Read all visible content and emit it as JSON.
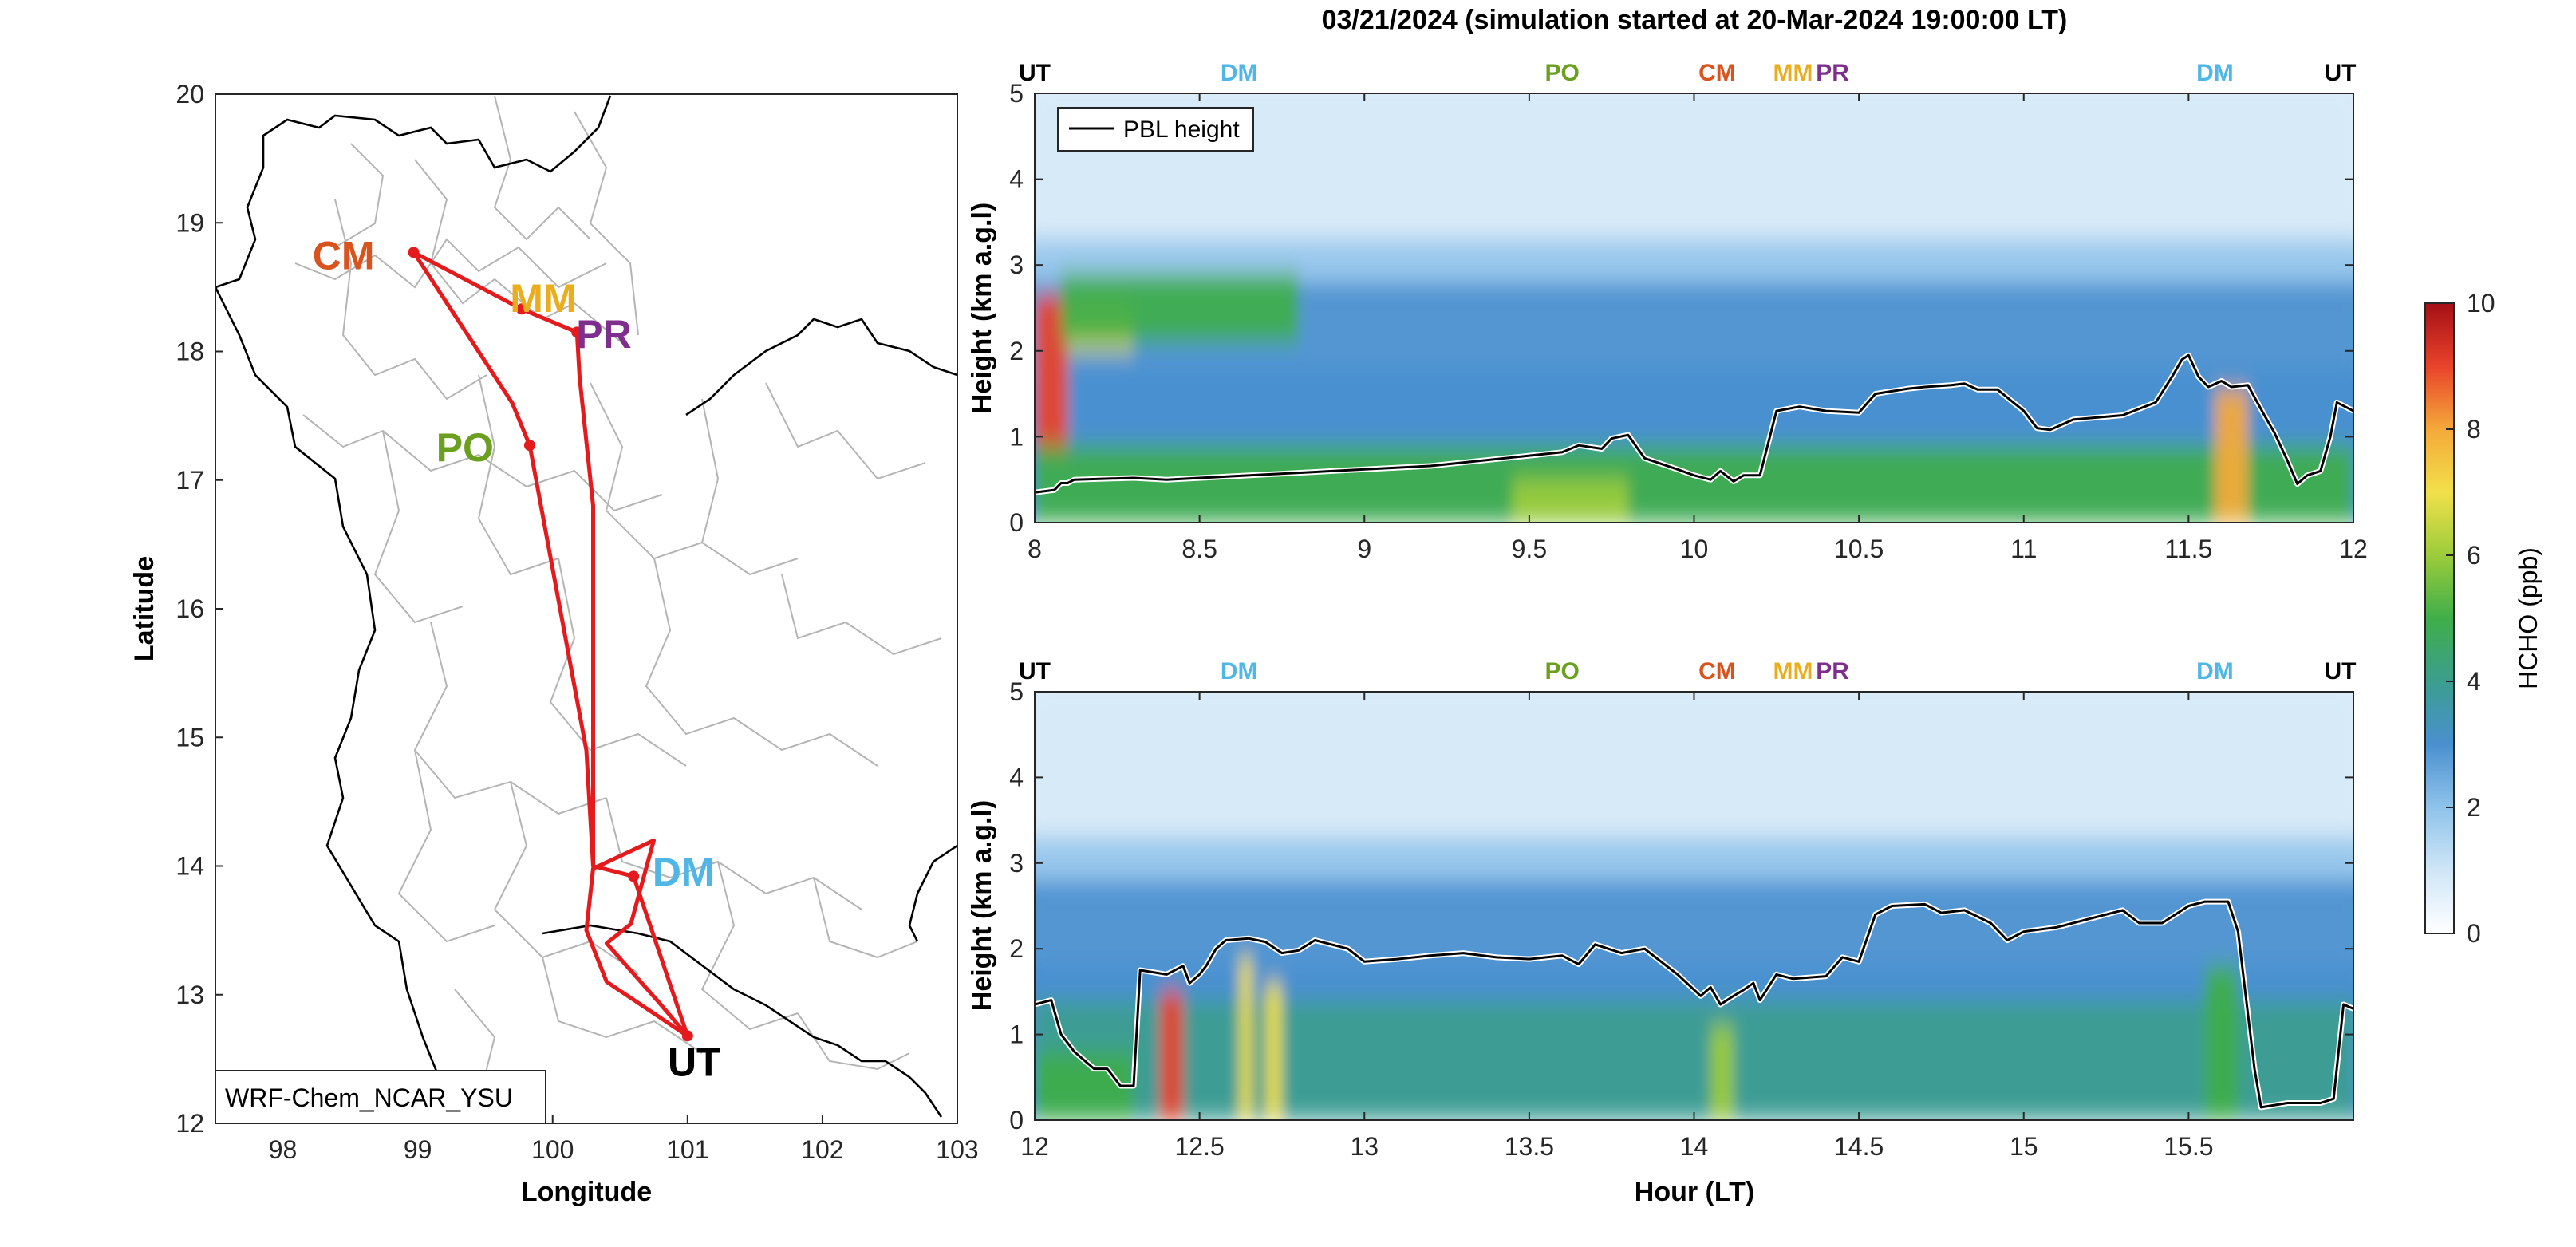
{
  "figure_title": "03/21/2024 (simulation started at 20-Mar-2024 19:00:00 LT)",
  "colors": {
    "route": "#e41a1c",
    "UT": "#000000",
    "DM": "#4fb6e6",
    "PO": "#6a9f1f",
    "CM": "#d9531e",
    "MM": "#eaad1e",
    "PR": "#7e2f8e",
    "pbl": "#000000"
  },
  "colormap": [
    "#ffffff",
    "#cfe6f7",
    "#8fc3ea",
    "#4a90d0",
    "#3b9e8e",
    "#3fae49",
    "#9ccc3b",
    "#f1e04a",
    "#f5a93a",
    "#e8432b",
    "#a50f15"
  ],
  "chart_data": [
    {
      "type": "map",
      "xlabel": "Longitude",
      "ylabel": "Latitude",
      "xlim": [
        97.5,
        103
      ],
      "ylim": [
        12,
        20
      ],
      "xticks": [
        "98",
        "99",
        "100",
        "101",
        "102",
        "103"
      ],
      "yticks": [
        "12",
        "13",
        "14",
        "15",
        "16",
        "17",
        "18",
        "19",
        "20"
      ],
      "model_label": "WRF-Chem_NCAR_YSU",
      "sites": [
        {
          "name": "CM",
          "lon": 98.97,
          "lat": 18.77,
          "label_lon": 98.45,
          "label_lat": 18.75
        },
        {
          "name": "MM",
          "lon": 99.77,
          "lat": 18.33,
          "label_lon": 99.93,
          "label_lat": 18.42
        },
        {
          "name": "PR",
          "lon": 100.18,
          "lat": 18.15,
          "label_lon": 100.38,
          "label_lat": 18.14
        },
        {
          "name": "PO",
          "lon": 99.83,
          "lat": 17.27,
          "label_lon": 99.35,
          "label_lat": 17.26
        },
        {
          "name": "DM",
          "lon": 100.6,
          "lat": 13.92,
          "label_lon": 100.97,
          "label_lat": 13.96
        },
        {
          "name": "UT",
          "lon": 101.0,
          "lat": 12.68,
          "label_lon": 101.05,
          "label_lat": 12.48
        }
      ],
      "route": [
        [
          101.0,
          12.68
        ],
        [
          100.4,
          13.1
        ],
        [
          100.25,
          13.5
        ],
        [
          100.3,
          13.98
        ],
        [
          100.75,
          14.2
        ],
        [
          100.58,
          13.55
        ],
        [
          100.4,
          13.4
        ],
        [
          100.78,
          12.95
        ],
        [
          101.0,
          12.68
        ],
        [
          100.6,
          13.92
        ],
        [
          100.3,
          14.0
        ],
        [
          100.25,
          14.9
        ],
        [
          99.83,
          17.27
        ],
        [
          99.7,
          17.6
        ],
        [
          98.97,
          18.77
        ],
        [
          99.77,
          18.33
        ],
        [
          100.18,
          18.15
        ],
        [
          100.2,
          17.8
        ],
        [
          100.3,
          16.8
        ],
        [
          100.3,
          14.0
        ]
      ]
    },
    {
      "type": "heatmap",
      "xlim": [
        8,
        12
      ],
      "ylim": [
        0,
        5
      ],
      "ylabel": "Height (km a.g.l)",
      "xticks": [
        "8",
        "8.5",
        "9",
        "9.5",
        "10",
        "10.5",
        "11",
        "11.5",
        "12"
      ],
      "yticks": [
        "0",
        "1",
        "2",
        "3",
        "4",
        "5"
      ],
      "legend": "PBL height",
      "site_marks": [
        {
          "name": "UT",
          "x": 8.0
        },
        {
          "name": "DM",
          "x": 8.62
        },
        {
          "name": "PO",
          "x": 9.6
        },
        {
          "name": "CM",
          "x": 10.07
        },
        {
          "name": "MM",
          "x": 10.3
        },
        {
          "name": "PR",
          "x": 10.42
        },
        {
          "name": "DM",
          "x": 11.58
        },
        {
          "name": "UT",
          "x": 11.96
        }
      ],
      "pbl": [
        [
          8.0,
          0.35
        ],
        [
          8.06,
          0.38
        ],
        [
          8.08,
          0.46
        ],
        [
          8.1,
          0.46
        ],
        [
          8.12,
          0.5
        ],
        [
          8.3,
          0.52
        ],
        [
          8.4,
          0.5
        ],
        [
          8.6,
          0.54
        ],
        [
          8.8,
          0.58
        ],
        [
          9.0,
          0.62
        ],
        [
          9.2,
          0.66
        ],
        [
          9.3,
          0.7
        ],
        [
          9.5,
          0.78
        ],
        [
          9.6,
          0.82
        ],
        [
          9.65,
          0.9
        ],
        [
          9.72,
          0.86
        ],
        [
          9.75,
          0.98
        ],
        [
          9.8,
          1.02
        ],
        [
          9.85,
          0.75
        ],
        [
          9.95,
          0.62
        ],
        [
          10.0,
          0.55
        ],
        [
          10.05,
          0.5
        ],
        [
          10.08,
          0.6
        ],
        [
          10.12,
          0.48
        ],
        [
          10.15,
          0.55
        ],
        [
          10.2,
          0.55
        ],
        [
          10.25,
          1.3
        ],
        [
          10.32,
          1.35
        ],
        [
          10.4,
          1.3
        ],
        [
          10.5,
          1.28
        ],
        [
          10.55,
          1.5
        ],
        [
          10.65,
          1.56
        ],
        [
          10.7,
          1.58
        ],
        [
          10.78,
          1.6
        ],
        [
          10.82,
          1.62
        ],
        [
          10.86,
          1.55
        ],
        [
          10.92,
          1.55
        ],
        [
          11.0,
          1.3
        ],
        [
          11.04,
          1.1
        ],
        [
          11.08,
          1.08
        ],
        [
          11.15,
          1.2
        ],
        [
          11.3,
          1.25
        ],
        [
          11.4,
          1.4
        ],
        [
          11.45,
          1.7
        ],
        [
          11.48,
          1.9
        ],
        [
          11.5,
          1.95
        ],
        [
          11.53,
          1.7
        ],
        [
          11.56,
          1.58
        ],
        [
          11.6,
          1.65
        ],
        [
          11.63,
          1.58
        ],
        [
          11.68,
          1.6
        ],
        [
          11.73,
          1.25
        ],
        [
          11.76,
          1.05
        ],
        [
          11.8,
          0.72
        ],
        [
          11.83,
          0.45
        ],
        [
          11.86,
          0.55
        ],
        [
          11.9,
          0.6
        ],
        [
          11.93,
          1.0
        ],
        [
          11.95,
          1.4
        ],
        [
          12.0,
          1.3
        ]
      ],
      "features": [
        {
          "x0": 8.0,
          "x1": 8.1,
          "y0": 0.8,
          "y1": 2.65,
          "level": 9
        },
        {
          "x0": 8.1,
          "x1": 8.3,
          "y0": 2.0,
          "y1": 2.6,
          "level": 7
        },
        {
          "x0": 8.08,
          "x1": 8.8,
          "y0": 2.1,
          "y1": 2.9,
          "level": 5
        },
        {
          "x0": 8.0,
          "x1": 12.0,
          "y0": 0.0,
          "y1": 0.9,
          "level": 5
        },
        {
          "x0": 9.45,
          "x1": 9.8,
          "y0": 0.0,
          "y1": 0.5,
          "level": 6
        },
        {
          "x0": 11.58,
          "x1": 11.68,
          "y0": 0.0,
          "y1": 1.55,
          "level": 8
        }
      ]
    },
    {
      "type": "heatmap",
      "xlim": [
        12,
        16
      ],
      "ylim": [
        0,
        5
      ],
      "xlabel": "Hour (LT)",
      "ylabel": "Height (km a.g.l)",
      "xticks": [
        "12",
        "12.5",
        "13",
        "13.5",
        "14",
        "14.5",
        "15",
        "15.5"
      ],
      "yticks": [
        "0",
        "1",
        "2",
        "3",
        "4",
        "5"
      ],
      "site_marks": [
        {
          "name": "UT",
          "x": 12.0
        },
        {
          "name": "DM",
          "x": 12.62
        },
        {
          "name": "PO",
          "x": 13.6
        },
        {
          "name": "CM",
          "x": 14.07
        },
        {
          "name": "MM",
          "x": 14.3
        },
        {
          "name": "PR",
          "x": 14.42
        },
        {
          "name": "DM",
          "x": 15.58
        },
        {
          "name": "UT",
          "x": 15.96
        }
      ],
      "pbl": [
        [
          12.0,
          1.35
        ],
        [
          12.05,
          1.4
        ],
        [
          12.08,
          1.0
        ],
        [
          12.12,
          0.8
        ],
        [
          12.18,
          0.6
        ],
        [
          12.22,
          0.6
        ],
        [
          12.26,
          0.4
        ],
        [
          12.3,
          0.4
        ],
        [
          12.32,
          1.75
        ],
        [
          12.4,
          1.7
        ],
        [
          12.45,
          1.8
        ],
        [
          12.47,
          1.6
        ],
        [
          12.5,
          1.7
        ],
        [
          12.52,
          1.8
        ],
        [
          12.55,
          2.0
        ],
        [
          12.58,
          2.1
        ],
        [
          12.65,
          2.12
        ],
        [
          12.7,
          2.08
        ],
        [
          12.75,
          1.95
        ],
        [
          12.8,
          1.98
        ],
        [
          12.85,
          2.1
        ],
        [
          12.95,
          2.0
        ],
        [
          13.0,
          1.85
        ],
        [
          13.1,
          1.88
        ],
        [
          13.2,
          1.92
        ],
        [
          13.3,
          1.95
        ],
        [
          13.4,
          1.9
        ],
        [
          13.5,
          1.88
        ],
        [
          13.6,
          1.92
        ],
        [
          13.65,
          1.82
        ],
        [
          13.7,
          2.05
        ],
        [
          13.78,
          1.95
        ],
        [
          13.85,
          2.0
        ],
        [
          13.95,
          1.7
        ],
        [
          14.02,
          1.45
        ],
        [
          14.05,
          1.55
        ],
        [
          14.08,
          1.35
        ],
        [
          14.12,
          1.45
        ],
        [
          14.15,
          1.52
        ],
        [
          14.18,
          1.6
        ],
        [
          14.2,
          1.4
        ],
        [
          14.25,
          1.7
        ],
        [
          14.3,
          1.65
        ],
        [
          14.4,
          1.68
        ],
        [
          14.45,
          1.9
        ],
        [
          14.5,
          1.85
        ],
        [
          14.55,
          2.4
        ],
        [
          14.6,
          2.5
        ],
        [
          14.7,
          2.52
        ],
        [
          14.75,
          2.42
        ],
        [
          14.82,
          2.45
        ],
        [
          14.9,
          2.3
        ],
        [
          14.95,
          2.1
        ],
        [
          15.0,
          2.2
        ],
        [
          15.1,
          2.25
        ],
        [
          15.2,
          2.35
        ],
        [
          15.3,
          2.45
        ],
        [
          15.35,
          2.3
        ],
        [
          15.42,
          2.3
        ],
        [
          15.5,
          2.5
        ],
        [
          15.55,
          2.55
        ],
        [
          15.62,
          2.55
        ],
        [
          15.65,
          2.2
        ],
        [
          15.7,
          0.6
        ],
        [
          15.72,
          0.15
        ],
        [
          15.8,
          0.2
        ],
        [
          15.9,
          0.2
        ],
        [
          15.94,
          0.25
        ],
        [
          15.97,
          1.35
        ],
        [
          16.0,
          1.3
        ]
      ],
      "features": [
        {
          "x0": 12.0,
          "x1": 16.0,
          "y0": 0.0,
          "y1": 1.4,
          "level": 4
        },
        {
          "x0": 12.0,
          "x1": 12.3,
          "y0": 0.0,
          "y1": 0.8,
          "level": 5
        },
        {
          "x0": 12.38,
          "x1": 12.45,
          "y0": 0.0,
          "y1": 1.5,
          "level": 9
        },
        {
          "x0": 12.62,
          "x1": 12.66,
          "y0": 0.0,
          "y1": 1.9,
          "level": 7
        },
        {
          "x0": 12.7,
          "x1": 12.75,
          "y0": 0.0,
          "y1": 1.6,
          "level": 7
        },
        {
          "x0": 14.05,
          "x1": 14.12,
          "y0": 0.0,
          "y1": 1.1,
          "level": 6
        },
        {
          "x0": 15.55,
          "x1": 15.65,
          "y0": 0.0,
          "y1": 1.8,
          "level": 5
        }
      ]
    }
  ],
  "colorbar": {
    "label": "HCHO (ppb)",
    "range": [
      0,
      10
    ],
    "ticks": [
      "0",
      "2",
      "4",
      "6",
      "8",
      "10"
    ]
  }
}
